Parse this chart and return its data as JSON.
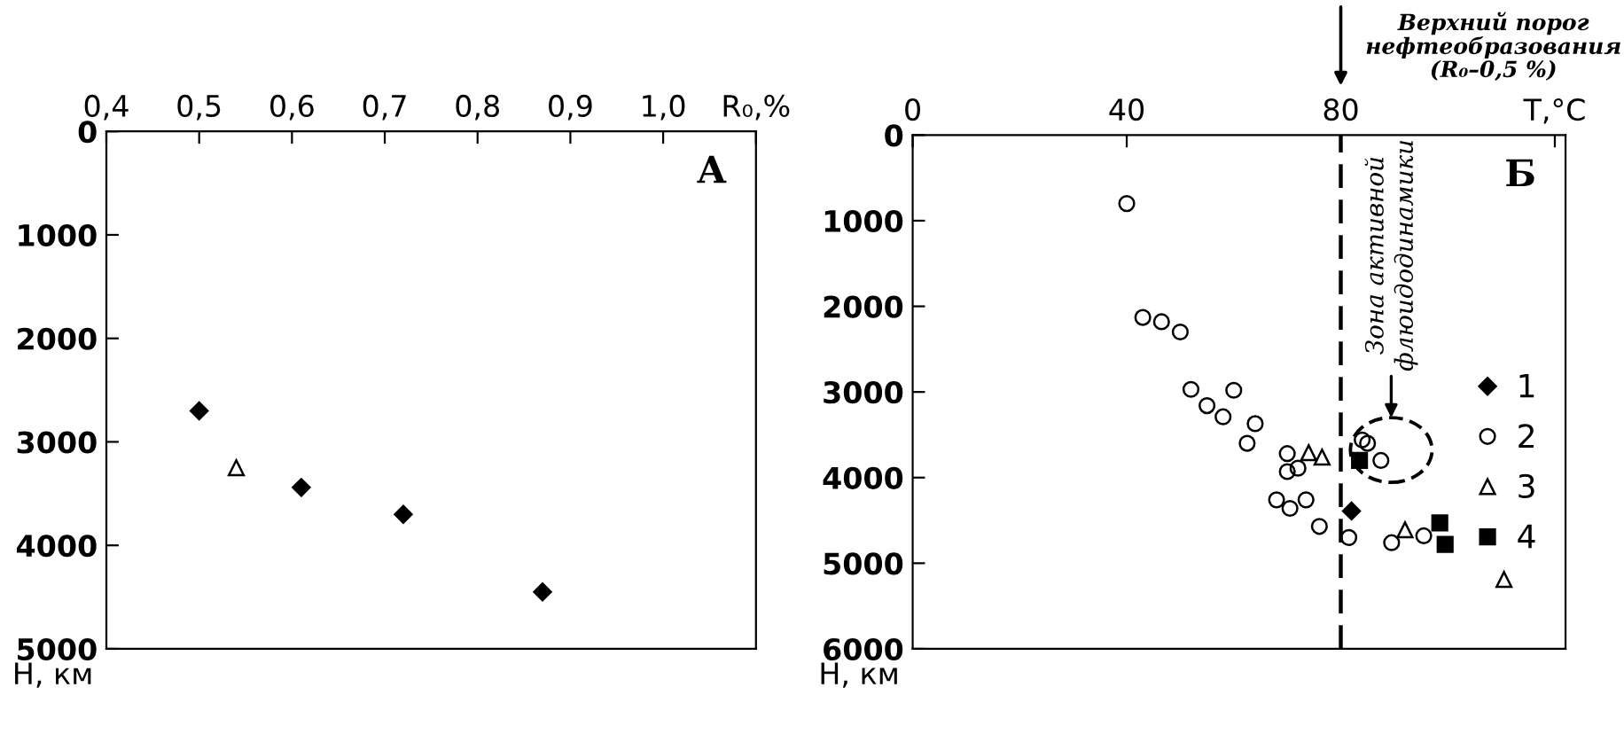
{
  "chart_data": [
    {
      "type": "scatter",
      "ylabel": "H, км",
      "annotations": [
        "А"
      ],
      "xlim": [
        0.4,
        1.1
      ],
      "ylim": [
        5000,
        0
      ],
      "grid": false,
      "legend": false,
      "xticks": [
        {
          "value": 0.4,
          "label": "0,4"
        },
        {
          "value": 0.5,
          "label": "0,5"
        },
        {
          "value": 0.6,
          "label": "0,6"
        },
        {
          "value": 0.7,
          "label": "0,7"
        },
        {
          "value": 0.8,
          "label": "0,8"
        },
        {
          "value": 0.9,
          "label": "0,9"
        },
        {
          "value": 1.0,
          "label": "1,0"
        },
        {
          "value": 1.1,
          "label": "R₀,%"
        }
      ],
      "yticks": [
        0,
        1000,
        2000,
        3000,
        4000,
        5000
      ],
      "series": [
        {
          "color": "#000000",
          "marker": "diamond",
          "x": [
            0.5,
            0.61,
            0.72,
            0.87
          ],
          "values": [
            2700,
            3440,
            3700,
            4450
          ]
        },
        {
          "color": "#000000",
          "marker": "triangle",
          "x": [
            0.54
          ],
          "values": [
            3250
          ]
        }
      ]
    },
    {
      "type": "scatter",
      "ylabel": "H, км",
      "xlim": [
        0,
        122
      ],
      "ylim": [
        6000,
        0
      ],
      "grid": false,
      "legend": "right",
      "annotations": [
        "Б",
        "Зона активной\nфлюидодинамики"
      ],
      "ref_lines": [
        {
          "axis": "x",
          "value": 80,
          "label": "Верхний порог\nнефтеобразования\n(R₀–0,5 %)",
          "line_style": "dashed",
          "color": "#000000"
        }
      ],
      "xticks": [
        0,
        40,
        80,
        {
          "value": 120,
          "label": "T,°C"
        }
      ],
      "yticks": [
        0,
        1000,
        2000,
        3000,
        4000,
        5000,
        6000
      ],
      "series": [
        {
          "name": "1",
          "color": "#000000",
          "marker": "diamond",
          "x": [
            82
          ],
          "values": [
            4390
          ]
        },
        {
          "name": "2",
          "color": "#000000",
          "marker": "circle",
          "x": [
            40,
            43,
            46.5,
            50,
            52,
            55,
            58,
            60,
            64,
            62.5,
            70,
            70,
            72,
            68,
            70.5,
            73.5,
            76,
            81.5,
            84,
            85,
            87.5,
            89.5,
            95.5
          ],
          "values": [
            800,
            2130,
            2180,
            2300,
            2970,
            3160,
            3290,
            2980,
            3370,
            3600,
            3720,
            3930,
            3890,
            4260,
            4360,
            4260,
            4570,
            4700,
            3560,
            3600,
            3800,
            4760,
            4680
          ]
        },
        {
          "name": "3",
          "color": "#000000",
          "marker": "triangle",
          "x": [
            74,
            76.5,
            92,
            110.5
          ],
          "values": [
            3710,
            3760,
            4610,
            5190
          ]
        },
        {
          "name": "4",
          "color": "#000000",
          "marker": "square",
          "x": [
            83.5,
            98.5,
            99.5
          ],
          "values": [
            3800,
            4530,
            4780
          ]
        }
      ]
    }
  ]
}
